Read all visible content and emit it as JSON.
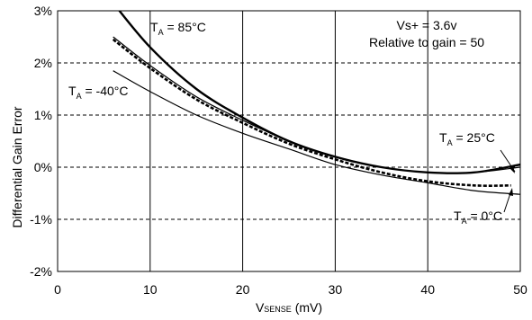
{
  "chart_data": {
    "type": "line",
    "title": "",
    "xlabel": {
      "main": "V",
      "sub": "SENSE",
      "unit": " (mV)"
    },
    "ylabel": "Differential Gain Error",
    "xlim": [
      0,
      50
    ],
    "ylim": [
      -2,
      3
    ],
    "x_ticks": [
      {
        "value": 0,
        "label": "0"
      },
      {
        "value": 10,
        "label": "10"
      },
      {
        "value": 20,
        "label": "20"
      },
      {
        "value": 30,
        "label": "30"
      },
      {
        "value": 40,
        "label": "40"
      },
      {
        "value": 50,
        "label": "50"
      }
    ],
    "y_ticks": [
      {
        "value": 3,
        "label": "3%"
      },
      {
        "value": 2,
        "label": "2%"
      },
      {
        "value": 1,
        "label": "1%"
      },
      {
        "value": 0,
        "label": "0%"
      },
      {
        "value": -1,
        "label": "-1%"
      },
      {
        "value": -2,
        "label": "-2%"
      }
    ],
    "grid": {
      "vertical": "solid",
      "horizontal": "dashed"
    },
    "annotations": [
      "Vs+ = 3.6v",
      "Relative to gain = 50"
    ],
    "series": [
      {
        "name": "T_A = 85°C",
        "label_parts": {
          "main": "T",
          "sub": "A",
          "rest": " = 85°C"
        },
        "style": "thick",
        "points": [
          [
            6,
            3.15
          ],
          [
            10,
            2.3
          ],
          [
            15,
            1.5
          ],
          [
            20,
            0.95
          ],
          [
            25,
            0.5
          ],
          [
            30,
            0.2
          ],
          [
            35,
            0.0
          ],
          [
            40,
            -0.1
          ],
          [
            45,
            -0.1
          ],
          [
            50,
            0.05
          ]
        ]
      },
      {
        "name": "T_A = 25°C",
        "label_parts": {
          "main": "T",
          "sub": "A",
          "rest": " = 25°C"
        },
        "style": "thin",
        "points": [
          [
            6,
            2.5
          ],
          [
            10,
            1.95
          ],
          [
            15,
            1.35
          ],
          [
            20,
            0.9
          ],
          [
            25,
            0.5
          ],
          [
            30,
            0.2
          ],
          [
            35,
            0.0
          ],
          [
            40,
            -0.1
          ],
          [
            45,
            -0.1
          ],
          [
            50,
            0.0
          ]
        ]
      },
      {
        "name": "T_A = 0°C",
        "label_parts": {
          "main": "T",
          "sub": "A",
          "rest": " = 0°C"
        },
        "style": "dashed",
        "points": [
          [
            6,
            2.45
          ],
          [
            10,
            1.9
          ],
          [
            15,
            1.3
          ],
          [
            20,
            0.85
          ],
          [
            25,
            0.45
          ],
          [
            30,
            0.15
          ],
          [
            35,
            -0.1
          ],
          [
            40,
            -0.27
          ],
          [
            45,
            -0.35
          ],
          [
            49,
            -0.35
          ]
        ]
      },
      {
        "name": "T_A = -40°C",
        "label_parts": {
          "main": "T",
          "sub": "A",
          "rest": " = -40°C"
        },
        "style": "thin",
        "points": [
          [
            6,
            1.85
          ],
          [
            10,
            1.45
          ],
          [
            15,
            1.0
          ],
          [
            20,
            0.65
          ],
          [
            25,
            0.35
          ],
          [
            30,
            0.05
          ],
          [
            35,
            -0.15
          ],
          [
            40,
            -0.3
          ],
          [
            45,
            -0.45
          ],
          [
            50,
            -0.52
          ]
        ]
      }
    ]
  }
}
